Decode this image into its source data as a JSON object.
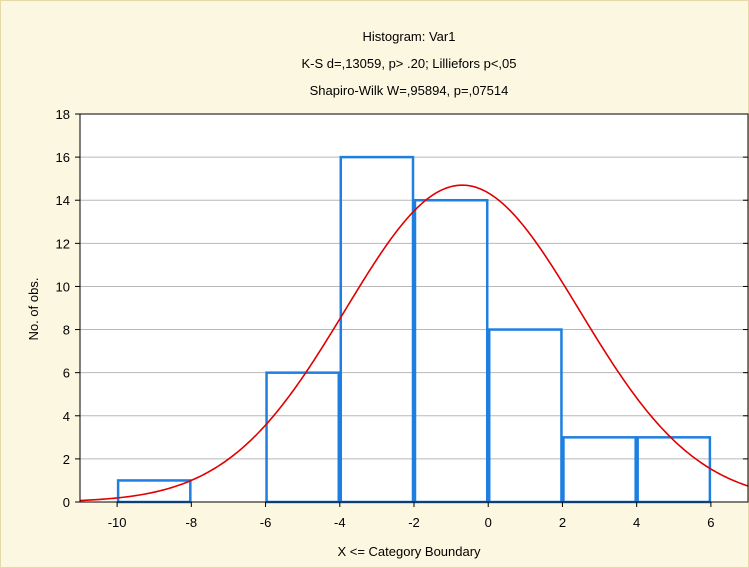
{
  "chart_data": {
    "type": "bar",
    "title": "Histogram: Var1",
    "subtitle_lines": [
      "K-S d=,13059, p> .20; Lilliefors p<,05",
      "Shapiro-Wilk W=,95894, p=,07514"
    ],
    "xlabel": "X <= Category Boundary",
    "ylabel": "No. of obs.",
    "xlim": [
      -11,
      7
    ],
    "ylim": [
      0,
      18
    ],
    "x_ticks": [
      -10,
      -8,
      -6,
      -4,
      -2,
      0,
      2,
      4,
      6
    ],
    "y_ticks": [
      0,
      2,
      4,
      6,
      8,
      10,
      12,
      14,
      16,
      18
    ],
    "grid": true,
    "bins": [
      {
        "from": -10,
        "to": -8,
        "count": 1
      },
      {
        "from": -8,
        "to": -6,
        "count": 0
      },
      {
        "from": -6,
        "to": -4,
        "count": 6
      },
      {
        "from": -4,
        "to": -2,
        "count": 16
      },
      {
        "from": -2,
        "to": 0,
        "count": 14
      },
      {
        "from": 0,
        "to": 2,
        "count": 8
      },
      {
        "from": 2,
        "to": 4,
        "count": 3
      },
      {
        "from": 4,
        "to": 6,
        "count": 3
      }
    ],
    "normal_curve": {
      "mean": -0.7,
      "sd": 3.15,
      "peak": 14.7
    },
    "colors": {
      "bars": "#1e7fe0",
      "curve": "#e00000",
      "grid": "#b8b8b8",
      "plot_bg": "#ffffff",
      "frame_bg": "#fcf7e1"
    }
  }
}
